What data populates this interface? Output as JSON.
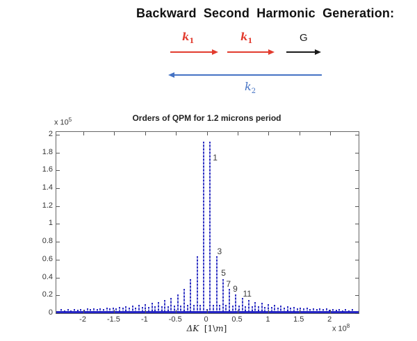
{
  "header": {
    "title": "Backward Second Harmonic Generation:"
  },
  "diagram": {
    "k1": {
      "base": "k",
      "sub": "1"
    },
    "k2": {
      "base": "k",
      "sub": "2"
    },
    "g_label": "G",
    "red": "#e23b2e",
    "blue": "#4472c4",
    "black": "#1a1a1a"
  },
  "chart_data": {
    "type": "stem",
    "title": "Orders of QPM for 1.2 microns period",
    "xlabel_symbol": "ΔK",
    "xlabel_unit_open": "[1\\",
    "xlabel_unit_m": "m",
    "xlabel_unit_close": "]",
    "y_exponent": {
      "prefix": "x 10",
      "exp": "5"
    },
    "x_exponent": {
      "prefix": "x 10",
      "exp": "8"
    },
    "xlim": [
      -2.44,
      2.46
    ],
    "ylim": [
      0,
      2.03
    ],
    "grid": false,
    "stem_color": "#2525bf",
    "baseline_color": "#2323c3",
    "x_ticks": [
      {
        "v": -2,
        "label": "-2"
      },
      {
        "v": -1.5,
        "label": "-1.5"
      },
      {
        "v": -1,
        "label": "-1"
      },
      {
        "v": -0.5,
        "label": "-0.5"
      },
      {
        "v": 0,
        "label": "0"
      },
      {
        "v": 0.5,
        "label": "0.5"
      },
      {
        "v": 1,
        "label": "1"
      },
      {
        "v": 1.5,
        "label": "1.5"
      },
      {
        "v": 2,
        "label": "2"
      }
    ],
    "y_ticks": [
      {
        "v": 0,
        "label": "0"
      },
      {
        "v": 0.2,
        "label": "0.2"
      },
      {
        "v": 0.4,
        "label": "0.4"
      },
      {
        "v": 0.6,
        "label": "0.6"
      },
      {
        "v": 0.8,
        "label": "0.8"
      },
      {
        "v": 1,
        "label": "1"
      },
      {
        "v": 1.2,
        "label": "1.2"
      },
      {
        "v": 1.4,
        "label": "1.4"
      },
      {
        "v": 1.6,
        "label": "1.6"
      },
      {
        "v": 1.8,
        "label": "1.8"
      },
      {
        "v": 2,
        "label": "2"
      }
    ],
    "annotations": [
      {
        "text": "1",
        "x": 0.135,
        "y": 1.74
      },
      {
        "text": "3",
        "x": 0.205,
        "y": 0.69
      },
      {
        "text": "5",
        "x": 0.27,
        "y": 0.455
      },
      {
        "text": "7",
        "x": 0.35,
        "y": 0.325
      },
      {
        "text": "9",
        "x": 0.46,
        "y": 0.275
      },
      {
        "text": "11",
        "x": 0.655,
        "y": 0.215
      }
    ],
    "stems": [
      [
        -2.408,
        0.027
      ],
      [
        -2.356,
        0.043
      ],
      [
        -2.304,
        0.03
      ],
      [
        -2.251,
        0.045
      ],
      [
        -2.199,
        0.033
      ],
      [
        -2.147,
        0.047
      ],
      [
        -2.094,
        0.036
      ],
      [
        -2.042,
        0.049
      ],
      [
        -1.99,
        0.04
      ],
      [
        -1.937,
        0.052
      ],
      [
        -1.885,
        0.043
      ],
      [
        -1.833,
        0.055
      ],
      [
        -1.78,
        0.046
      ],
      [
        -1.728,
        0.058
      ],
      [
        -1.676,
        0.049
      ],
      [
        -1.623,
        0.062
      ],
      [
        -1.571,
        0.052
      ],
      [
        -1.518,
        0.066
      ],
      [
        -1.466,
        0.056
      ],
      [
        -1.414,
        0.071
      ],
      [
        -1.361,
        0.059
      ],
      [
        -1.309,
        0.077
      ],
      [
        -1.257,
        0.062
      ],
      [
        -1.204,
        0.083
      ],
      [
        -1.152,
        0.065
      ],
      [
        -1.1,
        0.091
      ],
      [
        -1.047,
        0.068
      ],
      [
        -0.995,
        0.101
      ],
      [
        -0.942,
        0.071
      ],
      [
        -0.89,
        0.113
      ],
      [
        -0.838,
        0.075
      ],
      [
        -0.785,
        0.128
      ],
      [
        -0.733,
        0.078
      ],
      [
        -0.681,
        0.148
      ],
      [
        -0.628,
        0.081
      ],
      [
        -0.576,
        0.175
      ],
      [
        -0.524,
        0.084
      ],
      [
        -0.471,
        0.213
      ],
      [
        -0.419,
        0.087
      ],
      [
        -0.367,
        0.274
      ],
      [
        -0.314,
        0.09
      ],
      [
        -0.262,
        0.384
      ],
      [
        -0.209,
        0.094
      ],
      [
        -0.157,
        0.64
      ],
      [
        -0.105,
        0.097
      ],
      [
        -0.052,
        1.92
      ],
      [
        0,
        0.05
      ],
      [
        0.052,
        1.92
      ],
      [
        0.105,
        0.097
      ],
      [
        0.157,
        0.64
      ],
      [
        0.209,
        0.094
      ],
      [
        0.262,
        0.384
      ],
      [
        0.314,
        0.09
      ],
      [
        0.367,
        0.274
      ],
      [
        0.419,
        0.087
      ],
      [
        0.471,
        0.213
      ],
      [
        0.524,
        0.084
      ],
      [
        0.576,
        0.175
      ],
      [
        0.628,
        0.081
      ],
      [
        0.681,
        0.148
      ],
      [
        0.733,
        0.078
      ],
      [
        0.785,
        0.128
      ],
      [
        0.838,
        0.075
      ],
      [
        0.89,
        0.113
      ],
      [
        0.942,
        0.071
      ],
      [
        0.995,
        0.101
      ],
      [
        1.047,
        0.068
      ],
      [
        1.1,
        0.091
      ],
      [
        1.152,
        0.065
      ],
      [
        1.204,
        0.083
      ],
      [
        1.257,
        0.062
      ],
      [
        1.309,
        0.077
      ],
      [
        1.361,
        0.059
      ],
      [
        1.414,
        0.071
      ],
      [
        1.466,
        0.056
      ],
      [
        1.518,
        0.066
      ],
      [
        1.571,
        0.052
      ],
      [
        1.623,
        0.062
      ],
      [
        1.676,
        0.049
      ],
      [
        1.728,
        0.058
      ],
      [
        1.78,
        0.046
      ],
      [
        1.833,
        0.055
      ],
      [
        1.885,
        0.043
      ],
      [
        1.937,
        0.052
      ],
      [
        1.99,
        0.04
      ],
      [
        2.042,
        0.049
      ],
      [
        2.094,
        0.036
      ],
      [
        2.147,
        0.047
      ],
      [
        2.199,
        0.033
      ],
      [
        2.251,
        0.045
      ],
      [
        2.304,
        0.03
      ],
      [
        2.356,
        0.043
      ],
      [
        2.408,
        0.027
      ]
    ]
  }
}
